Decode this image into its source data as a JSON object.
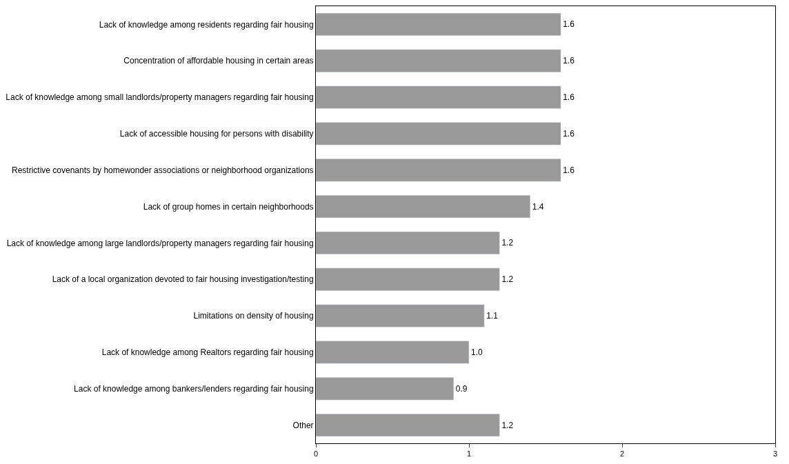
{
  "chart_data": {
    "type": "bar",
    "orientation": "horizontal",
    "categories": [
      "Lack of knowledge among residents regarding fair housing",
      "Concentration of affordable housing in certain areas",
      "Lack of knowledge among small landlords/property managers regarding fair housing",
      "Lack of accessible housing for persons with disability",
      "Restrictive covenants by homewonder associations or neighborhood organizations",
      "Lack of group homes in certain neighborhoods",
      "Lack of knowledge among large landlords/property managers regarding fair housing",
      "Lack of a local organization devoted to fair housing investigation/testing",
      "Limitations on density of housing",
      "Lack of knowledge among Realtors regarding fair housing",
      "Lack of knowledge among bankers/lenders regarding fair housing",
      "Other"
    ],
    "values": [
      1.6,
      1.6,
      1.6,
      1.6,
      1.6,
      1.4,
      1.2,
      1.2,
      1.1,
      1.0,
      0.9,
      1.2
    ],
    "value_labels": [
      "1.6",
      "1.6",
      "1.6",
      "1.6",
      "1.6",
      "1.4",
      "1.2",
      "1.2",
      "1.1",
      "1.0",
      "0.9",
      "1.2"
    ],
    "color": "#999999",
    "xlim": [
      0,
      3
    ],
    "xticks": [
      0,
      1,
      2,
      3
    ]
  }
}
